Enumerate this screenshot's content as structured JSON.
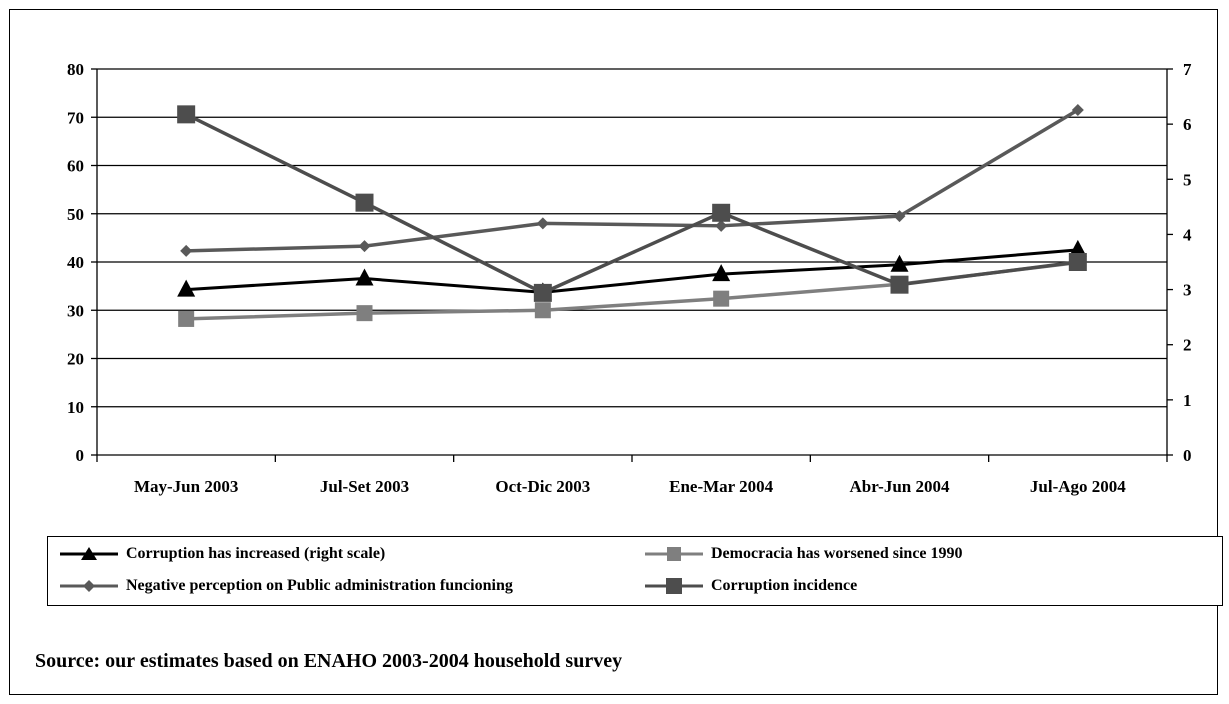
{
  "chart_data": {
    "type": "line",
    "categories": [
      "May-Jun 2003",
      "Jul-Set 2003",
      "Oct-Dic 2003",
      "Ene-Mar 2004",
      "Abr-Jun 2004",
      "Jul-Ago 2004"
    ],
    "left_axis": {
      "ylim": [
        0,
        80
      ],
      "ticks": [
        "0",
        "10",
        "20",
        "30",
        "40",
        "50",
        "60",
        "70",
        "80"
      ]
    },
    "right_axis": {
      "ylim": [
        0,
        7
      ],
      "ticks": [
        "0",
        "1",
        "2",
        "3",
        "4",
        "5",
        "6",
        "7"
      ]
    },
    "grid": true,
    "series": [
      {
        "name": "Corruption has increased (right scale)",
        "axis": "right",
        "color": "#000000",
        "marker": "triangle",
        "values": [
          3.0,
          3.2,
          2.95,
          3.28,
          3.45,
          3.72
        ]
      },
      {
        "name": "Democracia has worsened since 1990",
        "axis": "left",
        "color": "#7f7f7f",
        "marker": "square",
        "values": [
          28.2,
          29.4,
          30.0,
          32.4,
          35.4,
          39.9
        ]
      },
      {
        "name": "Negative perception on Public administration funcioning",
        "axis": "left",
        "color": "#595959",
        "marker": "diamond",
        "values": [
          42.3,
          43.3,
          48.0,
          47.5,
          49.5,
          71.5
        ]
      },
      {
        "name": "Corruption incidence",
        "axis": "left",
        "color": "#4d4d4d",
        "marker": "square-large",
        "values": [
          70.6,
          52.3,
          33.6,
          50.2,
          35.3,
          40.0
        ]
      }
    ],
    "legend_position": "bottom"
  },
  "source_note": "Source: our estimates based on ENAHO 2003-2004 household survey"
}
